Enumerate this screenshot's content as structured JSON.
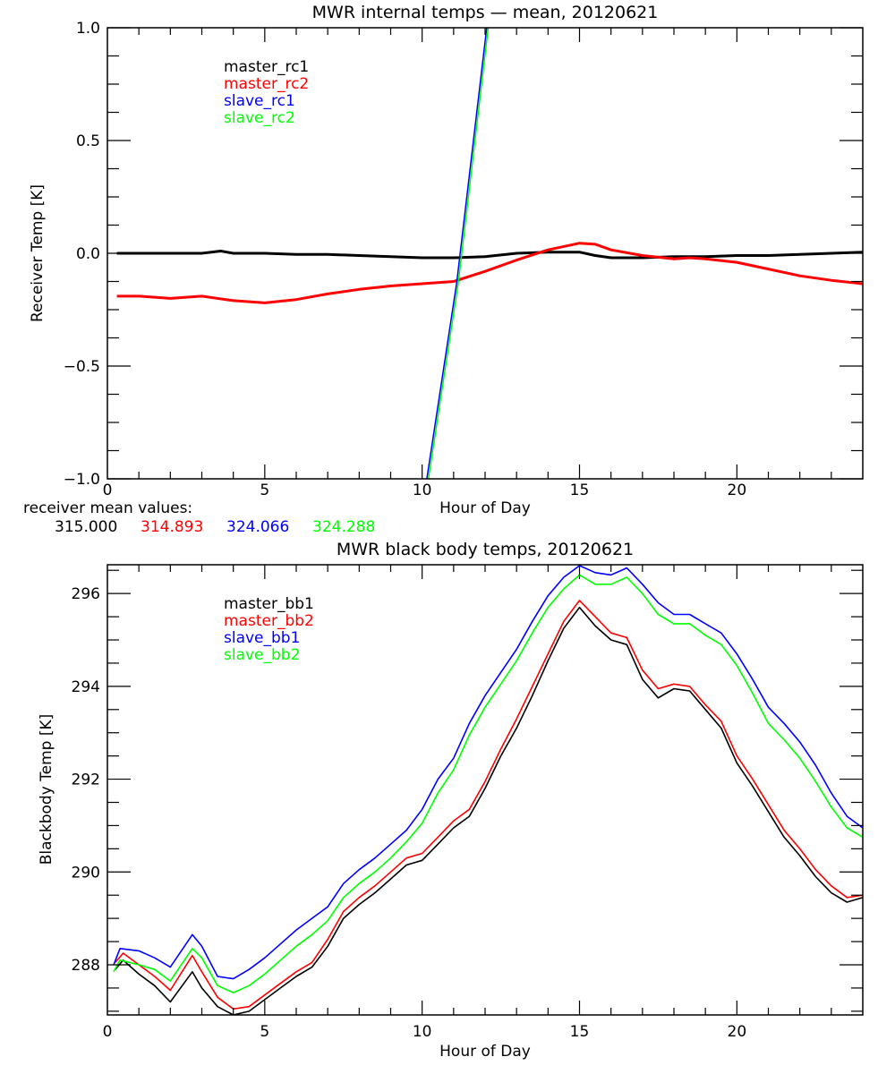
{
  "chart_data": [
    {
      "type": "line",
      "title": "MWR internal temps — mean, 20120621",
      "xlabel": "Hour of Day",
      "ylabel": "Receiver Temp [K]",
      "xlim": [
        0,
        24
      ],
      "ylim": [
        -1.0,
        1.0
      ],
      "xticks": [
        0,
        5,
        10,
        15,
        20
      ],
      "xtick_labels": [
        "0",
        "5",
        "10",
        "15",
        "20"
      ],
      "yticks": [
        -1.0,
        -0.5,
        0.0,
        0.5,
        1.0
      ],
      "ytick_labels": [
        "−1.0",
        "−0.5",
        "0.0",
        "0.5",
        "1.0"
      ],
      "grid": false,
      "legend_position": "top-left",
      "series": [
        {
          "name": "master_rc1",
          "color": "#000000",
          "x": [
            0.3,
            1,
            2,
            3,
            3.6,
            4,
            5,
            6,
            7,
            8,
            9,
            10,
            10.5,
            11,
            12,
            13,
            14,
            15,
            15.5,
            16,
            16.5,
            17,
            18,
            19,
            20,
            21,
            22,
            23,
            24
          ],
          "y": [
            0.0,
            0.0,
            0.0,
            0.0,
            0.01,
            0.0,
            0.0,
            -0.005,
            -0.005,
            -0.01,
            -0.015,
            -0.02,
            -0.02,
            -0.02,
            -0.015,
            0.0,
            0.005,
            0.005,
            -0.01,
            -0.02,
            -0.02,
            -0.02,
            -0.015,
            -0.015,
            -0.01,
            -0.01,
            -0.005,
            0.0,
            0.005
          ]
        },
        {
          "name": "master_rc2",
          "color": "#ff0000",
          "x": [
            0.3,
            1,
            2,
            3,
            4,
            5,
            6,
            7,
            8,
            9,
            10,
            11,
            12,
            13,
            14,
            15,
            15.5,
            16,
            17,
            18,
            18.5,
            19,
            20,
            21,
            22,
            23,
            24
          ],
          "y": [
            -0.19,
            -0.19,
            -0.2,
            -0.19,
            -0.21,
            -0.22,
            -0.205,
            -0.18,
            -0.16,
            -0.145,
            -0.135,
            -0.125,
            -0.08,
            -0.03,
            0.015,
            0.045,
            0.04,
            0.015,
            -0.01,
            -0.025,
            -0.02,
            -0.025,
            -0.04,
            -0.07,
            -0.1,
            -0.12,
            -0.135
          ]
        },
        {
          "name": "slave_rc1",
          "color": "#0000ff",
          "x": [
            10.15,
            11.1,
            12.05
          ],
          "y": [
            -1.0,
            -0.13,
            1.0
          ]
        },
        {
          "name": "slave_rc2",
          "color": "#00ff00",
          "x": [
            10.2,
            11.15,
            12.1
          ],
          "y": [
            -1.0,
            -0.13,
            1.0
          ]
        }
      ],
      "annotation": {
        "label": "receiver mean values:",
        "values": [
          {
            "text": "315.000",
            "color": "#000000"
          },
          {
            "text": "314.893",
            "color": "#ff0000"
          },
          {
            "text": "324.066",
            "color": "#0000ff"
          },
          {
            "text": "324.288",
            "color": "#00ff00"
          }
        ]
      }
    },
    {
      "type": "line",
      "title": "MWR black body temps, 20120621",
      "xlabel": "Hour of Day",
      "ylabel": "Blackbody Temp [K]",
      "xlim": [
        0,
        24
      ],
      "ylim": [
        286.92,
        296.62
      ],
      "xticks": [
        0,
        5,
        10,
        15,
        20
      ],
      "xtick_labels": [
        "0",
        "5",
        "10",
        "15",
        "20"
      ],
      "yticks": [
        288,
        290,
        292,
        294,
        296
      ],
      "ytick_labels": [
        "288",
        "290",
        "292",
        "294",
        "296"
      ],
      "grid": false,
      "legend_position": "top-left",
      "series": [
        {
          "name": "master_bb1",
          "color": "#000000",
          "x": [
            0.25,
            0.5,
            1,
            1.5,
            2,
            2.7,
            3,
            3.5,
            4,
            4.5,
            5,
            5.5,
            6,
            6.5,
            7,
            7.5,
            8,
            8.5,
            9,
            9.5,
            10,
            10.5,
            11,
            11.5,
            12,
            12.5,
            13,
            13.5,
            14,
            14.5,
            15,
            15.5,
            16,
            16.5,
            17,
            17.5,
            18,
            18.5,
            19,
            19.5,
            20,
            20.5,
            21,
            21.5,
            22,
            22.5,
            23,
            23.5,
            24
          ],
          "y": [
            287.9,
            288.1,
            287.8,
            287.55,
            287.2,
            287.85,
            287.5,
            287.1,
            286.92,
            287.0,
            287.25,
            287.5,
            287.75,
            287.95,
            288.4,
            289.0,
            289.3,
            289.55,
            289.85,
            290.15,
            290.25,
            290.6,
            290.95,
            291.2,
            291.8,
            292.5,
            293.1,
            293.8,
            294.55,
            295.25,
            295.7,
            295.3,
            295.0,
            294.9,
            294.15,
            293.75,
            293.95,
            293.9,
            293.5,
            293.1,
            292.35,
            291.85,
            291.3,
            290.75,
            290.35,
            289.9,
            289.55,
            289.35,
            289.45
          ]
        },
        {
          "name": "master_bb2",
          "color": "#ff0000",
          "x": [
            0.25,
            0.5,
            1,
            1.5,
            2,
            2.7,
            3,
            3.5,
            4,
            4.5,
            5,
            5.5,
            6,
            6.5,
            7,
            7.5,
            8,
            8.5,
            9,
            9.5,
            10,
            10.5,
            11,
            11.5,
            12,
            12.5,
            13,
            13.5,
            14,
            14.5,
            15,
            15.5,
            16,
            16.5,
            17,
            17.5,
            18,
            18.5,
            19,
            19.5,
            20,
            20.5,
            21,
            21.5,
            22,
            22.5,
            23,
            23.5,
            24
          ],
          "y": [
            288.05,
            288.25,
            288.0,
            287.75,
            287.45,
            288.2,
            287.85,
            287.3,
            287.05,
            287.1,
            287.35,
            287.6,
            287.85,
            288.05,
            288.55,
            289.15,
            289.45,
            289.7,
            290.0,
            290.3,
            290.4,
            290.75,
            291.1,
            291.35,
            291.95,
            292.65,
            293.3,
            294.0,
            294.7,
            295.4,
            295.85,
            295.5,
            295.15,
            295.05,
            294.35,
            293.95,
            294.05,
            294.0,
            293.6,
            293.25,
            292.5,
            292.0,
            291.45,
            290.9,
            290.5,
            290.05,
            289.7,
            289.45,
            289.5
          ]
        },
        {
          "name": "slave_bb1",
          "color": "#0000ff",
          "x": [
            0.2,
            0.4,
            1,
            1.5,
            2,
            2.7,
            3,
            3.5,
            4,
            4.5,
            5,
            5.5,
            6,
            6.5,
            7,
            7.5,
            8,
            8.5,
            9,
            9.5,
            10,
            10.5,
            11,
            11.5,
            12,
            12.5,
            13,
            13.5,
            14,
            14.5,
            15,
            15.5,
            16,
            16.5,
            17,
            17.5,
            18,
            18.5,
            19,
            19.5,
            20,
            20.5,
            21,
            21.5,
            22,
            22.5,
            23,
            23.5,
            24
          ],
          "y": [
            288.0,
            288.35,
            288.3,
            288.15,
            287.95,
            288.65,
            288.4,
            287.75,
            287.7,
            287.9,
            288.15,
            288.45,
            288.75,
            289.0,
            289.25,
            289.75,
            290.05,
            290.3,
            290.6,
            290.9,
            291.35,
            292.0,
            292.45,
            293.2,
            293.8,
            294.3,
            294.8,
            295.4,
            295.95,
            296.35,
            296.6,
            296.45,
            296.4,
            296.55,
            296.2,
            295.8,
            295.55,
            295.55,
            295.35,
            295.15,
            294.7,
            294.15,
            293.55,
            293.2,
            292.8,
            292.3,
            291.7,
            291.2,
            290.95
          ]
        },
        {
          "name": "slave_bb2",
          "color": "#00ff00",
          "x": [
            0.2,
            0.4,
            1,
            1.5,
            2,
            2.7,
            3,
            3.5,
            4,
            4.5,
            5,
            5.5,
            6,
            6.5,
            7,
            7.5,
            8,
            8.5,
            9,
            9.5,
            10,
            10.5,
            11,
            11.5,
            12,
            12.5,
            13,
            13.5,
            14,
            14.5,
            15,
            15.5,
            16,
            16.5,
            17,
            17.5,
            18,
            18.5,
            19,
            19.5,
            20,
            20.5,
            21,
            21.5,
            22,
            22.5,
            23,
            23.5,
            24
          ],
          "y": [
            287.85,
            288.1,
            288.0,
            287.9,
            287.65,
            288.35,
            288.15,
            287.55,
            287.4,
            287.55,
            287.8,
            288.1,
            288.4,
            288.65,
            288.95,
            289.45,
            289.75,
            290.0,
            290.3,
            290.65,
            291.05,
            291.7,
            292.2,
            292.95,
            293.55,
            294.05,
            294.55,
            295.15,
            295.7,
            296.1,
            296.4,
            296.2,
            296.2,
            296.35,
            296.0,
            295.55,
            295.35,
            295.35,
            295.1,
            294.9,
            294.45,
            293.85,
            293.2,
            292.85,
            292.45,
            291.95,
            291.4,
            290.95,
            290.75
          ]
        }
      ]
    }
  ]
}
